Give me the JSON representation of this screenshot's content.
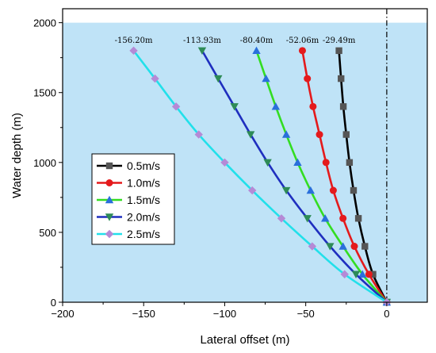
{
  "chart_data": {
    "type": "line",
    "xlabel": "Lateral offset (m)",
    "ylabel": "Water depth (m)",
    "xlim": [
      -200,
      25
    ],
    "ylim": [
      0,
      2100
    ],
    "x_ticks": [
      -200,
      -150,
      -100,
      -50,
      0
    ],
    "y_ticks": [
      0,
      500,
      1000,
      1500,
      2000
    ],
    "x_tick_labels": [
      "−200",
      "−150",
      "−100",
      "−50",
      "0"
    ],
    "y_tick_labels": [
      "0",
      "500",
      "1000",
      "1500",
      "2000"
    ],
    "water_surface": 2000,
    "reference_line_x": 0,
    "background_color": "#bfe3f7",
    "legend_position": "center-left",
    "y": [
      0,
      200,
      400,
      600,
      800,
      1000,
      1200,
      1400,
      1600,
      1800
    ],
    "series": [
      {
        "name": "0.5m/s",
        "color": "#000000",
        "line_color": "#000000",
        "marker": "square",
        "marker_color": "#555555",
        "x": [
          0,
          -8.5,
          -13.5,
          -17.5,
          -20.5,
          -23,
          -25,
          -26.8,
          -28.2,
          -29.49
        ],
        "annotation": "-29.49m"
      },
      {
        "name": "1.0m/s",
        "color": "#e41a1c",
        "line_color": "#e41a1c",
        "marker": "circle",
        "marker_color": "#e41a1c",
        "x": [
          0,
          -11,
          -20,
          -27,
          -33,
          -37.5,
          -41.5,
          -45.5,
          -49,
          -52.06
        ],
        "annotation": "-52.06m"
      },
      {
        "name": "1.5m/s",
        "color": "#33dd22",
        "line_color": "#33dd22",
        "marker": "triangle-up",
        "marker_color": "#2a6fdb",
        "x": [
          0,
          -15,
          -27,
          -38,
          -47,
          -55,
          -62,
          -68.5,
          -74.5,
          -80.4
        ],
        "annotation": "-80.40m"
      },
      {
        "name": "2.0m/s",
        "color": "#1f2fbf",
        "line_color": "#1f2fbf",
        "marker": "triangle-down",
        "marker_color": "#2e8b57",
        "x": [
          0,
          -19,
          -35,
          -49,
          -62,
          -73.5,
          -84,
          -94,
          -104,
          -113.93
        ],
        "annotation": "-113.93m"
      },
      {
        "name": "2.5m/s",
        "color": "#22e0ea",
        "line_color": "#22e0ea",
        "marker": "diamond",
        "marker_color": "#b58ad6",
        "x": [
          0,
          -26,
          -46,
          -65,
          -83,
          -100,
          -116,
          -130,
          -143,
          -156.2
        ],
        "annotation": "-156.20m"
      }
    ]
  }
}
